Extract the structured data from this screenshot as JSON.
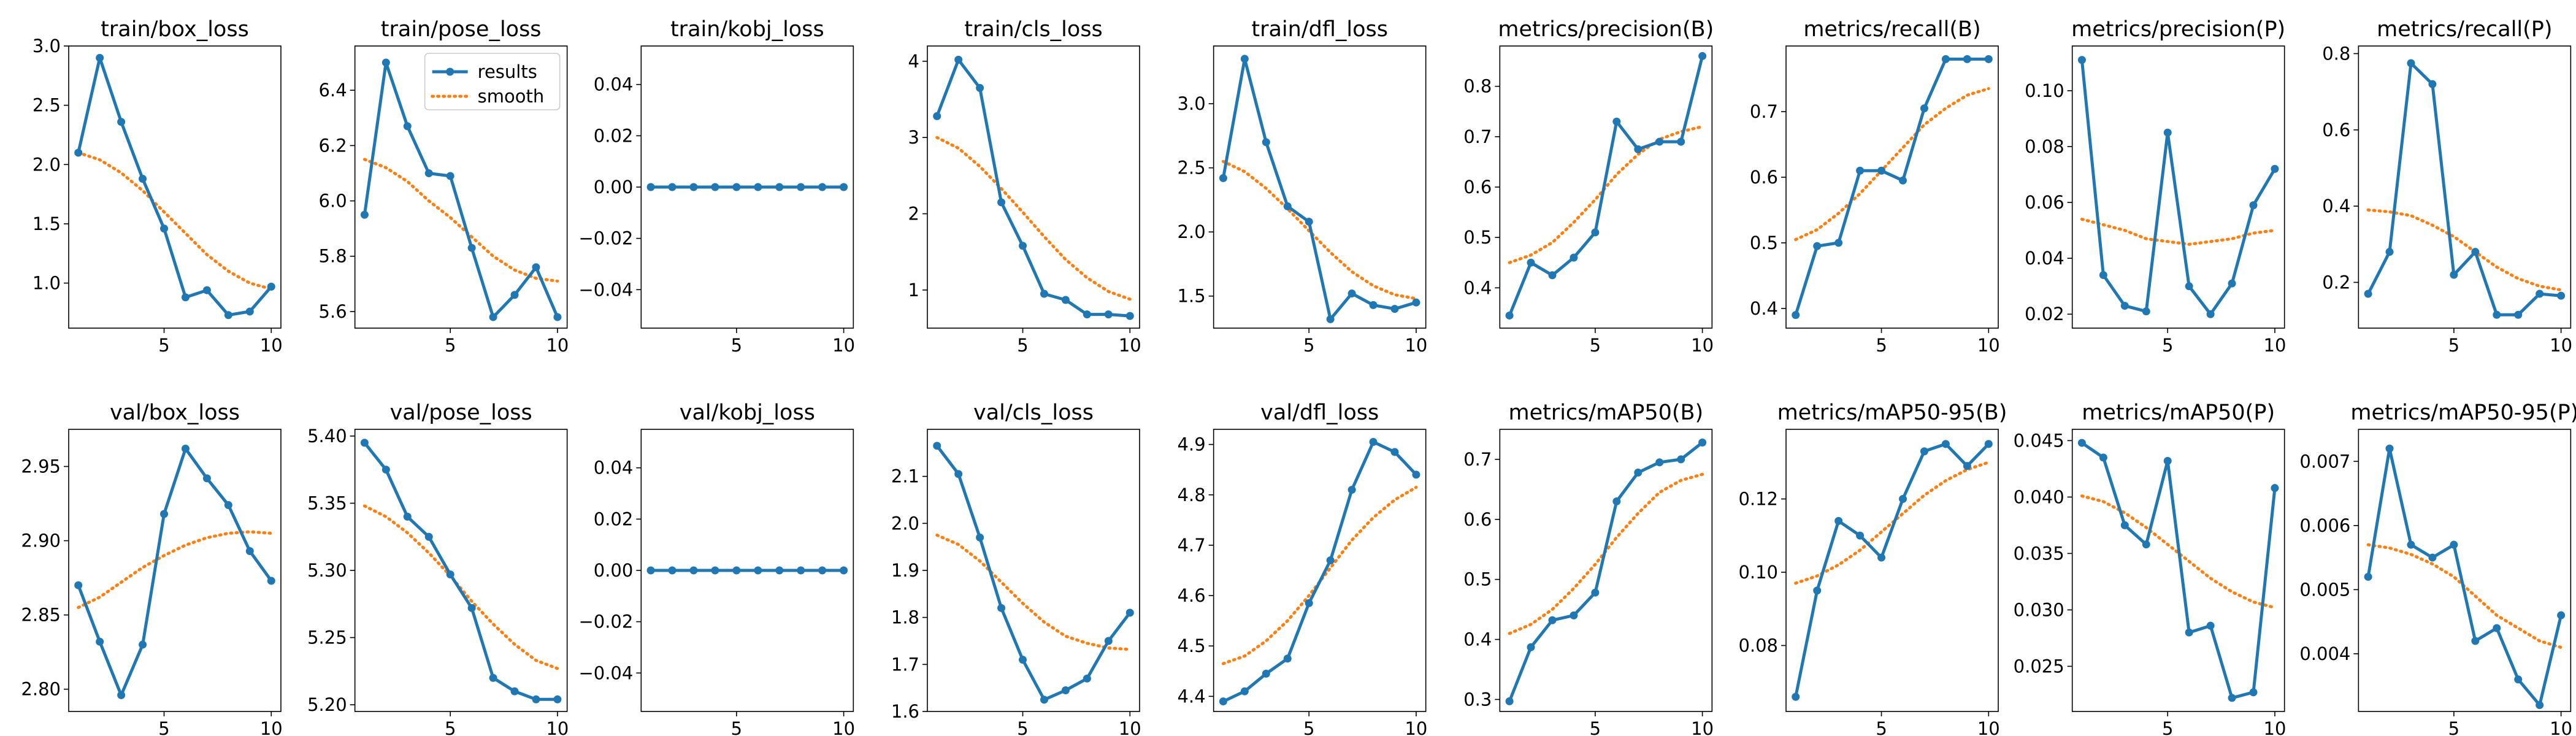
{
  "figure": {
    "x": [
      1,
      2,
      3,
      4,
      5,
      6,
      7,
      8,
      9,
      10
    ],
    "legend": {
      "results_label": "results",
      "smooth_label": "smooth",
      "placement": "top-right",
      "panel": "train/pose_loss"
    },
    "colors": {
      "results": "#1f77b4",
      "smooth": "#ff7f0e"
    },
    "xticks": [
      5,
      10
    ]
  },
  "chart_data": [
    {
      "type": "line",
      "title": "train/box_loss",
      "xticks": [
        5,
        10
      ],
      "ylim": [
        0.62,
        3.0
      ],
      "yticks": [
        1.0,
        1.5,
        2.0,
        2.5,
        3.0
      ],
      "ytick_labels": [
        "1.0",
        "1.5",
        "2.0",
        "2.5",
        "3.0"
      ],
      "series": [
        {
          "name": "results",
          "values": [
            2.1,
            2.9,
            2.36,
            1.88,
            1.46,
            0.88,
            0.94,
            0.73,
            0.76,
            0.97
          ]
        },
        {
          "name": "smooth",
          "values": [
            2.1,
            2.04,
            1.93,
            1.78,
            1.6,
            1.42,
            1.24,
            1.1,
            1.0,
            0.95
          ]
        }
      ]
    },
    {
      "type": "line",
      "title": "train/pose_loss",
      "xticks": [
        5,
        10
      ],
      "ylim": [
        5.54,
        6.56
      ],
      "yticks": [
        5.6,
        5.8,
        6.0,
        6.2,
        6.4
      ],
      "ytick_labels": [
        "5.6",
        "5.8",
        "6.0",
        "6.2",
        "6.4"
      ],
      "series": [
        {
          "name": "results",
          "values": [
            5.95,
            6.5,
            6.27,
            6.1,
            6.09,
            5.83,
            5.58,
            5.66,
            5.76,
            5.58
          ]
        },
        {
          "name": "smooth",
          "values": [
            6.15,
            6.12,
            6.07,
            6.0,
            5.94,
            5.87,
            5.8,
            5.75,
            5.72,
            5.71
          ]
        }
      ]
    },
    {
      "type": "line",
      "title": "train/kobj_loss",
      "xticks": [
        5,
        10
      ],
      "ylim": [
        -0.055,
        0.055
      ],
      "yticks": [
        -0.04,
        -0.02,
        0.0,
        0.02,
        0.04
      ],
      "ytick_labels": [
        "−0.04",
        "−0.02",
        "0.00",
        "0.02",
        "0.04"
      ],
      "series": [
        {
          "name": "results",
          "values": [
            0,
            0,
            0,
            0,
            0,
            0,
            0,
            0,
            0,
            0
          ]
        },
        {
          "name": "smooth",
          "values": [
            0,
            0,
            0,
            0,
            0,
            0,
            0,
            0,
            0,
            0
          ]
        }
      ]
    },
    {
      "type": "line",
      "title": "train/cls_loss",
      "xticks": [
        5,
        10
      ],
      "ylim": [
        0.5,
        4.2
      ],
      "yticks": [
        1,
        2,
        3,
        4
      ],
      "ytick_labels": [
        "1",
        "2",
        "3",
        "4"
      ],
      "series": [
        {
          "name": "results",
          "values": [
            3.28,
            4.02,
            3.65,
            2.15,
            1.58,
            0.95,
            0.87,
            0.68,
            0.68,
            0.66
          ]
        },
        {
          "name": "smooth",
          "values": [
            3.0,
            2.86,
            2.62,
            2.33,
            2.02,
            1.7,
            1.4,
            1.16,
            0.98,
            0.88
          ]
        }
      ]
    },
    {
      "type": "line",
      "title": "train/dfl_loss",
      "xticks": [
        5,
        10
      ],
      "ylim": [
        1.25,
        3.45
      ],
      "yticks": [
        1.5,
        2.0,
        2.5,
        3.0
      ],
      "ytick_labels": [
        "1.5",
        "2.0",
        "2.5",
        "3.0"
      ],
      "series": [
        {
          "name": "results",
          "values": [
            2.42,
            3.35,
            2.7,
            2.2,
            2.08,
            1.32,
            1.52,
            1.43,
            1.4,
            1.45
          ]
        },
        {
          "name": "smooth",
          "values": [
            2.55,
            2.47,
            2.34,
            2.18,
            2.01,
            1.84,
            1.69,
            1.58,
            1.51,
            1.48
          ]
        }
      ]
    },
    {
      "type": "line",
      "title": "metrics/precision(B)",
      "xticks": [
        5,
        10
      ],
      "ylim": [
        0.32,
        0.88
      ],
      "yticks": [
        0.4,
        0.5,
        0.6,
        0.7,
        0.8
      ],
      "ytick_labels": [
        "0.4",
        "0.5",
        "0.6",
        "0.7",
        "0.8"
      ],
      "series": [
        {
          "name": "results",
          "values": [
            0.345,
            0.45,
            0.425,
            0.46,
            0.51,
            0.73,
            0.675,
            0.69,
            0.69,
            0.86
          ]
        },
        {
          "name": "smooth",
          "values": [
            0.45,
            0.465,
            0.49,
            0.53,
            0.575,
            0.625,
            0.665,
            0.695,
            0.71,
            0.72
          ]
        }
      ]
    },
    {
      "type": "line",
      "title": "metrics/recall(B)",
      "xticks": [
        5,
        10
      ],
      "ylim": [
        0.37,
        0.8
      ],
      "yticks": [
        0.4,
        0.5,
        0.6,
        0.7
      ],
      "ytick_labels": [
        "0.4",
        "0.5",
        "0.6",
        "0.7"
      ],
      "series": [
        {
          "name": "results",
          "values": [
            0.39,
            0.495,
            0.5,
            0.61,
            0.61,
            0.595,
            0.705,
            0.78,
            0.78,
            0.78
          ]
        },
        {
          "name": "smooth",
          "values": [
            0.505,
            0.52,
            0.545,
            0.575,
            0.61,
            0.645,
            0.68,
            0.705,
            0.725,
            0.735
          ]
        }
      ]
    },
    {
      "type": "line",
      "title": "metrics/precision(P)",
      "xticks": [
        5,
        10
      ],
      "ylim": [
        0.015,
        0.116
      ],
      "yticks": [
        0.02,
        0.04,
        0.06,
        0.08,
        0.1
      ],
      "ytick_labels": [
        "0.02",
        "0.04",
        "0.06",
        "0.08",
        "0.10"
      ],
      "series": [
        {
          "name": "results",
          "values": [
            0.111,
            0.034,
            0.023,
            0.021,
            0.085,
            0.03,
            0.02,
            0.031,
            0.059,
            0.072
          ]
        },
        {
          "name": "smooth",
          "values": [
            0.054,
            0.052,
            0.05,
            0.047,
            0.046,
            0.045,
            0.046,
            0.047,
            0.049,
            0.05
          ]
        }
      ]
    },
    {
      "type": "line",
      "title": "metrics/recall(P)",
      "xticks": [
        5,
        10
      ],
      "ylim": [
        0.08,
        0.82
      ],
      "yticks": [
        0.2,
        0.4,
        0.6,
        0.8
      ],
      "ytick_labels": [
        "0.2",
        "0.4",
        "0.6",
        "0.8"
      ],
      "series": [
        {
          "name": "results",
          "values": [
            0.17,
            0.28,
            0.775,
            0.72,
            0.22,
            0.28,
            0.115,
            0.115,
            0.17,
            0.165
          ]
        },
        {
          "name": "smooth",
          "values": [
            0.39,
            0.385,
            0.375,
            0.35,
            0.32,
            0.28,
            0.24,
            0.21,
            0.19,
            0.18
          ]
        }
      ]
    },
    {
      "type": "line",
      "title": "val/box_loss",
      "xticks": [
        5,
        10
      ],
      "ylim": [
        2.785,
        2.975
      ],
      "yticks": [
        2.8,
        2.85,
        2.9,
        2.95
      ],
      "ytick_labels": [
        "2.80",
        "2.85",
        "2.90",
        "2.95"
      ],
      "series": [
        {
          "name": "results",
          "values": [
            2.87,
            2.832,
            2.796,
            2.83,
            2.918,
            2.962,
            2.942,
            2.924,
            2.893,
            2.873
          ]
        },
        {
          "name": "smooth",
          "values": [
            2.855,
            2.862,
            2.872,
            2.882,
            2.89,
            2.897,
            2.902,
            2.905,
            2.906,
            2.905
          ]
        }
      ]
    },
    {
      "type": "line",
      "title": "val/pose_loss",
      "xticks": [
        5,
        10
      ],
      "ylim": [
        5.195,
        5.405
      ],
      "yticks": [
        5.2,
        5.25,
        5.3,
        5.35,
        5.4
      ],
      "ytick_labels": [
        "5.20",
        "5.25",
        "5.30",
        "5.35",
        "5.40"
      ],
      "series": [
        {
          "name": "results",
          "values": [
            5.395,
            5.375,
            5.34,
            5.325,
            5.297,
            5.272,
            5.22,
            5.21,
            5.204,
            5.204
          ]
        },
        {
          "name": "smooth",
          "values": [
            5.348,
            5.34,
            5.328,
            5.313,
            5.296,
            5.277,
            5.26,
            5.245,
            5.233,
            5.227
          ]
        }
      ]
    },
    {
      "type": "line",
      "title": "val/kobj_loss",
      "xticks": [
        5,
        10
      ],
      "ylim": [
        -0.055,
        0.055
      ],
      "yticks": [
        -0.04,
        -0.02,
        0.0,
        0.02,
        0.04
      ],
      "ytick_labels": [
        "−0.04",
        "−0.02",
        "0.00",
        "0.02",
        "0.04"
      ],
      "series": [
        {
          "name": "results",
          "values": [
            0,
            0,
            0,
            0,
            0,
            0,
            0,
            0,
            0,
            0
          ]
        },
        {
          "name": "smooth",
          "values": [
            0,
            0,
            0,
            0,
            0,
            0,
            0,
            0,
            0,
            0
          ]
        }
      ]
    },
    {
      "type": "line",
      "title": "val/cls_loss",
      "xticks": [
        5,
        10
      ],
      "ylim": [
        1.6,
        2.2
      ],
      "yticks": [
        1.6,
        1.7,
        1.8,
        1.9,
        2.0,
        2.1
      ],
      "ytick_labels": [
        "1.6",
        "1.7",
        "1.8",
        "1.9",
        "2.0",
        "2.1"
      ],
      "series": [
        {
          "name": "results",
          "values": [
            2.165,
            2.105,
            1.97,
            1.82,
            1.71,
            1.625,
            1.645,
            1.67,
            1.75,
            1.81
          ]
        },
        {
          "name": "smooth",
          "values": [
            1.975,
            1.955,
            1.92,
            1.875,
            1.83,
            1.79,
            1.76,
            1.745,
            1.735,
            1.732
          ]
        }
      ]
    },
    {
      "type": "line",
      "title": "val/dfl_loss",
      "xticks": [
        5,
        10
      ],
      "ylim": [
        4.37,
        4.93
      ],
      "yticks": [
        4.4,
        4.5,
        4.6,
        4.7,
        4.8,
        4.9
      ],
      "ytick_labels": [
        "4.4",
        "4.5",
        "4.6",
        "4.7",
        "4.8",
        "4.9"
      ],
      "series": [
        {
          "name": "results",
          "values": [
            4.39,
            4.41,
            4.445,
            4.475,
            4.585,
            4.67,
            4.81,
            4.905,
            4.885,
            4.84
          ]
        },
        {
          "name": "smooth",
          "values": [
            4.465,
            4.48,
            4.51,
            4.55,
            4.6,
            4.655,
            4.71,
            4.755,
            4.79,
            4.815
          ]
        }
      ]
    },
    {
      "type": "line",
      "title": "metrics/mAP50(B)",
      "xticks": [
        5,
        10
      ],
      "ylim": [
        0.28,
        0.75
      ],
      "yticks": [
        0.3,
        0.4,
        0.5,
        0.6,
        0.7
      ],
      "ytick_labels": [
        "0.3",
        "0.4",
        "0.5",
        "0.6",
        "0.7"
      ],
      "series": [
        {
          "name": "results",
          "values": [
            0.297,
            0.387,
            0.432,
            0.44,
            0.478,
            0.63,
            0.678,
            0.695,
            0.7,
            0.728
          ]
        },
        {
          "name": "smooth",
          "values": [
            0.41,
            0.425,
            0.45,
            0.485,
            0.525,
            0.57,
            0.61,
            0.645,
            0.665,
            0.675
          ]
        }
      ]
    },
    {
      "type": "line",
      "title": "metrics/mAP50-95(B)",
      "xticks": [
        5,
        10
      ],
      "ylim": [
        0.062,
        0.139
      ],
      "yticks": [
        0.08,
        0.1,
        0.12
      ],
      "ytick_labels": [
        "0.08",
        "0.10",
        "0.12"
      ],
      "series": [
        {
          "name": "results",
          "values": [
            0.066,
            0.095,
            0.114,
            0.11,
            0.104,
            0.12,
            0.133,
            0.135,
            0.129,
            0.135
          ]
        },
        {
          "name": "smooth",
          "values": [
            0.097,
            0.099,
            0.102,
            0.106,
            0.111,
            0.116,
            0.121,
            0.125,
            0.128,
            0.13
          ]
        }
      ]
    },
    {
      "type": "line",
      "title": "metrics/mAP50(P)",
      "xticks": [
        5,
        10
      ],
      "ylim": [
        0.021,
        0.046
      ],
      "yticks": [
        0.025,
        0.03,
        0.035,
        0.04,
        0.045
      ],
      "ytick_labels": [
        "0.025",
        "0.030",
        "0.035",
        "0.040",
        "0.045"
      ],
      "series": [
        {
          "name": "results",
          "values": [
            0.0448,
            0.0435,
            0.0375,
            0.0358,
            0.0432,
            0.028,
            0.0286,
            0.0222,
            0.0227,
            0.0408
          ]
        },
        {
          "name": "smooth",
          "values": [
            0.0401,
            0.0396,
            0.0386,
            0.0373,
            0.0358,
            0.0343,
            0.0328,
            0.0316,
            0.0307,
            0.0302
          ]
        }
      ]
    },
    {
      "type": "line",
      "title": "metrics/mAP50-95(P)",
      "xticks": [
        5,
        10
      ],
      "ylim": [
        0.0031,
        0.0075
      ],
      "yticks": [
        0.004,
        0.005,
        0.006,
        0.007
      ],
      "ytick_labels": [
        "0.004",
        "0.005",
        "0.006",
        "0.007"
      ],
      "series": [
        {
          "name": "results",
          "values": [
            0.0052,
            0.0072,
            0.0057,
            0.0055,
            0.0057,
            0.0042,
            0.0044,
            0.0036,
            0.0032,
            0.0046
          ]
        },
        {
          "name": "smooth",
          "values": [
            0.0057,
            0.00565,
            0.00555,
            0.0054,
            0.0052,
            0.0049,
            0.0046,
            0.0044,
            0.0042,
            0.0041
          ]
        }
      ]
    }
  ]
}
